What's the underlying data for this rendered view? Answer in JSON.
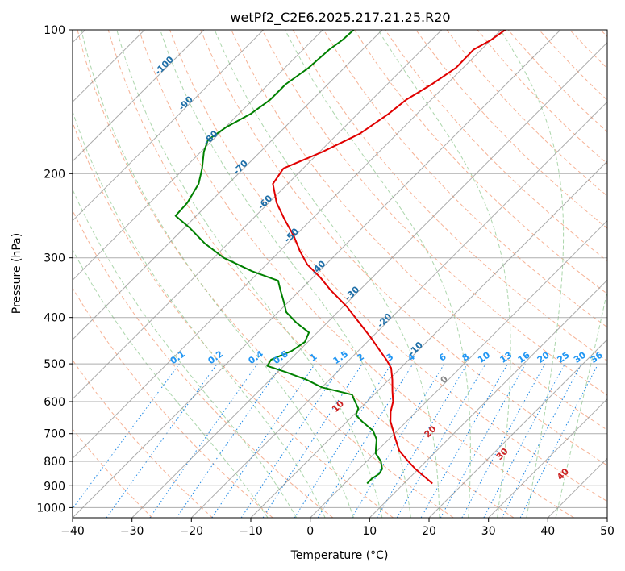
{
  "chart_data": {
    "type": "line",
    "title": "wetPf2_C2E6.2025.217.21.25.R20",
    "xlabel": "Temperature (°C)",
    "ylabel": "Pressure (hPa)",
    "xlim": [
      -40,
      50
    ],
    "ylim": [
      1050,
      100
    ],
    "y_scale": "log",
    "x_ticks": [
      "−40",
      "−30",
      "−20",
      "−10",
      "0",
      "10",
      "20",
      "30",
      "40",
      "50"
    ],
    "y_ticks": [
      "100",
      "200",
      "300",
      "400",
      "500",
      "600",
      "700",
      "800",
      "900",
      "1000"
    ],
    "grid": true,
    "colors": {
      "temperature": "#e00000",
      "dewpoint": "#008000",
      "dry_adiabats": "#f4a582",
      "moist_adiabats": "#9ecf9e",
      "mixing_ratio": "#1e88e5",
      "isotherms": "#888888",
      "mixing_label": "#2196f3",
      "isotherm_label": "#1f6fa8",
      "wetbulb_label": "#cc2222"
    },
    "series": [
      {
        "key": "temperature",
        "pressure": [
          890,
          860,
          830,
          800,
          760,
          720,
          690,
          660,
          630,
          600,
          570,
          540,
          510,
          490,
          470,
          440,
          410,
          380,
          350,
          330,
          310,
          290,
          270,
          250,
          230,
          210,
          195,
          180,
          165,
          150,
          140,
          130,
          120,
          110,
          105,
          100
        ],
        "temp": [
          14.8,
          12.2,
          9.5,
          7.0,
          3.7,
          1.2,
          -0.7,
          -2.7,
          -4.3,
          -5.6,
          -7.5,
          -9.4,
          -11.6,
          -13.8,
          -16.3,
          -20.2,
          -24.6,
          -29.3,
          -35.0,
          -38.7,
          -43.1,
          -46.7,
          -50.2,
          -54.4,
          -58.7,
          -62.5,
          -63.3,
          -59.5,
          -56.3,
          -54.8,
          -54.2,
          -52.5,
          -51.2,
          -51.3,
          -50.0,
          -49.3
        ]
      },
      {
        "key": "dewpoint",
        "pressure": [
          890,
          870,
          850,
          830,
          800,
          770,
          750,
          720,
          690,
          660,
          640,
          620,
          600,
          580,
          560,
          540,
          520,
          505,
          490,
          470,
          450,
          430,
          410,
          390,
          370,
          350,
          335,
          320,
          300,
          280,
          260,
          245,
          230,
          210,
          195,
          180,
          170,
          160,
          150,
          140,
          130,
          120,
          110,
          105,
          100
        ],
        "temp": [
          3.8,
          3.8,
          4.2,
          3.9,
          2.4,
          0.2,
          -0.7,
          -2.0,
          -4.1,
          -7.5,
          -9.6,
          -10.3,
          -12.0,
          -13.7,
          -20.0,
          -23.8,
          -28.7,
          -32.8,
          -33.2,
          -31.2,
          -30.5,
          -31.4,
          -35.2,
          -38.6,
          -40.9,
          -43.4,
          -45.3,
          -51.3,
          -58.3,
          -63.9,
          -69.0,
          -73.5,
          -73.7,
          -75.0,
          -77.0,
          -79.5,
          -80.8,
          -79.9,
          -78.0,
          -77.1,
          -77.1,
          -76.0,
          -75.6,
          -75.0,
          -74.8
        ]
      }
    ],
    "isotherm_labels": [
      "-100",
      "-90",
      "-80",
      "-70",
      "-60",
      "-50",
      "-40",
      "-30",
      "-20",
      "-10",
      "0"
    ],
    "wetbulb_labels": [
      "10",
      "20",
      "30",
      "40"
    ],
    "mixing_ratio_labels": [
      "0.1",
      "0.2",
      "0.4",
      "0.6",
      "1",
      "1.5",
      "2",
      "3",
      "4",
      "6",
      "8",
      "10",
      "13",
      "16",
      "20",
      "25",
      "30",
      "36"
    ]
  }
}
